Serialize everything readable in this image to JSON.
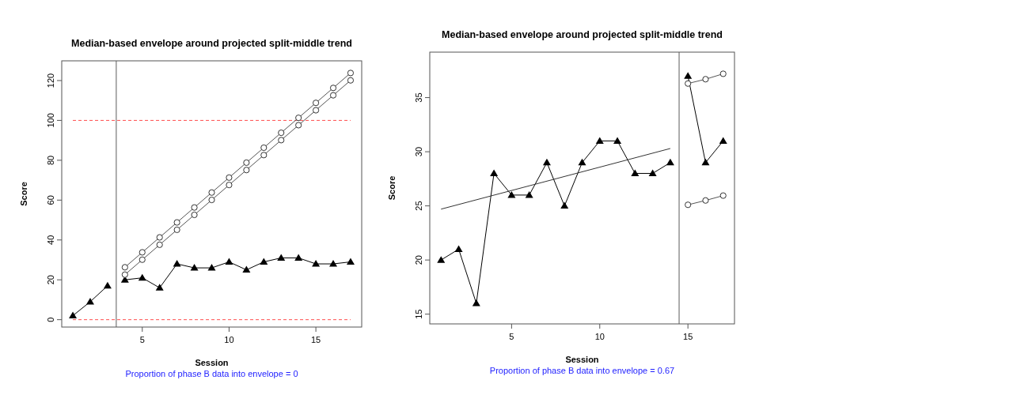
{
  "chart_data": [
    {
      "type": "line",
      "title": "Median-based envelope around projected split-middle trend",
      "xlabel": "Session",
      "ylabel": "Score",
      "annotations": [
        "Proportion of phase B data into envelope = 0"
      ],
      "xlim": [
        0.36,
        17.64
      ],
      "xticks": [
        5,
        10,
        15
      ],
      "ylim": [
        -3.7,
        129.9
      ],
      "yticks": [
        0,
        20,
        40,
        60,
        80,
        100,
        120
      ],
      "grid": false,
      "ref_lines": [
        {
          "axis": "x",
          "value": 3.5,
          "color": "#777777",
          "line_style": "solid"
        },
        {
          "axis": "y",
          "value": 0,
          "color": "#ff4d4d",
          "line_style": "dashed"
        },
        {
          "axis": "y",
          "value": 100,
          "color": "#ff4d4d",
          "line_style": "dashed"
        }
      ],
      "series": [
        {
          "color": "#000000",
          "marker": "triangle",
          "x": [
            1,
            2,
            3
          ],
          "values": [
            2,
            9,
            17
          ]
        },
        {
          "color": "#000000",
          "marker": "triangle",
          "x": [
            4,
            5,
            6,
            7,
            8,
            9,
            10,
            11,
            12,
            13,
            14,
            15,
            16,
            17
          ],
          "values": [
            20,
            21,
            16,
            28,
            26,
            26,
            29,
            25,
            29,
            31,
            31,
            28,
            28,
            29
          ]
        },
        {
          "color": "#555555",
          "marker": "circle",
          "x": [
            4,
            5,
            6,
            7,
            8,
            9,
            10,
            11,
            12,
            13,
            14,
            15,
            16,
            17
          ],
          "values": [
            26.3,
            33.8,
            41.3,
            48.8,
            56.3,
            63.8,
            71.3,
            78.8,
            86.3,
            93.8,
            101.3,
            108.8,
            116.3,
            123.8
          ]
        },
        {
          "color": "#555555",
          "marker": "circle",
          "x": [
            4,
            5,
            6,
            7,
            8,
            9,
            10,
            11,
            12,
            13,
            14,
            15,
            16,
            17
          ],
          "values": [
            22.6,
            30.1,
            37.6,
            45.1,
            52.6,
            60.1,
            67.6,
            75.1,
            82.6,
            90.1,
            97.6,
            105.1,
            112.6,
            120.1
          ]
        }
      ]
    },
    {
      "type": "line",
      "title": "Median-based envelope around projected split-middle trend",
      "xlabel": "Session",
      "ylabel": "Score",
      "annotations": [
        "Proportion of phase B data into envelope = 0.67"
      ],
      "xlim": [
        0.36,
        17.64
      ],
      "xticks": [
        5,
        10,
        15
      ],
      "ylim": [
        14.1,
        39.2
      ],
      "yticks": [
        15,
        20,
        25,
        30,
        35
      ],
      "grid": false,
      "ref_lines": [
        {
          "axis": "x",
          "value": 14.5,
          "color": "#777777",
          "line_style": "solid"
        }
      ],
      "series": [
        {
          "color": "#000000",
          "marker": "triangle",
          "x": [
            1,
            2,
            3,
            4,
            5,
            6,
            7,
            8,
            9,
            10,
            11,
            12,
            13,
            14
          ],
          "values": [
            20,
            21,
            16,
            28,
            26,
            26,
            29,
            25,
            29,
            31,
            31,
            28,
            28,
            29
          ]
        },
        {
          "color": "#000000",
          "marker": "triangle",
          "x": [
            15,
            16,
            17
          ],
          "values": [
            37,
            29,
            31
          ]
        },
        {
          "color": "#555555",
          "marker": "circle",
          "x": [
            15,
            16,
            17
          ],
          "values": [
            36.3,
            36.7,
            37.2
          ]
        },
        {
          "color": "#555555",
          "marker": "circle",
          "x": [
            15,
            16,
            17
          ],
          "values": [
            25.1,
            25.5,
            25.95
          ]
        },
        {
          "color": "#333333",
          "marker": "none",
          "x": [
            1,
            14
          ],
          "values": [
            24.7,
            30.3
          ]
        }
      ]
    }
  ]
}
